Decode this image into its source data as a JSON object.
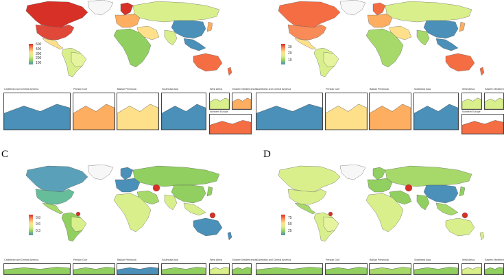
{
  "panels": [
    {
      "letter": "",
      "scale_colors": [
        "#d73027",
        "#fc8d59",
        "#fee08b",
        "#d9ef8b",
        "#91cf60",
        "#4a90b8"
      ],
      "legend_ticks": [
        "600",
        "400",
        "300",
        "200",
        "100"
      ],
      "insets": [
        "Caribbean and Central America",
        "Persian Gulf",
        "Balkan Peninsula",
        "Southeast Asia",
        "West Africa",
        "Eastern Mediterranean",
        "Northern Europe"
      ]
    },
    {
      "letter": "",
      "scale_colors": [
        "#d73027",
        "#fc8d59",
        "#fee08b",
        "#d9ef8b",
        "#91cf60",
        "#4a90b8"
      ],
      "legend_ticks": [
        "30",
        "20",
        "10"
      ],
      "insets": [
        "Caribbean and Central America",
        "Persian Gulf",
        "Balkan Peninsula",
        "Southeast Asia",
        "West Africa",
        "Eastern Mediterranean",
        "Northern Europe"
      ]
    },
    {
      "letter": "C",
      "scale_colors": [
        "#d73027",
        "#fc8d59",
        "#fee08b",
        "#d9ef8b",
        "#91cf60",
        "#4a90b8"
      ],
      "legend_ticks": [
        "0.8",
        "0.6",
        "0.3"
      ],
      "insets": [
        "Caribbean and Central America",
        "Persian Gulf",
        "Balkan Peninsula",
        "Southeast Asia",
        "West Africa",
        "Eastern Mediterranean"
      ]
    },
    {
      "letter": "D",
      "scale_colors": [
        "#d73027",
        "#fc8d59",
        "#fee08b",
        "#d9ef8b",
        "#91cf60",
        "#4a90b8"
      ],
      "legend_ticks": [
        "75",
        "50",
        "25"
      ],
      "insets": [
        "Caribbean and Central America",
        "Persian Gulf",
        "Balkan Peninsula",
        "Southeast Asia",
        "West Africa",
        "Eastern Mediterranean"
      ]
    }
  ],
  "region_colors": {
    "A": {
      "canada": "#d73027",
      "usa": "#e0483a",
      "mexico": "#fee08b",
      "south_america": "#d9ef8b",
      "brazil": "#e6f59d",
      "greenland": "#f7f7f7",
      "europe": "#fdae61",
      "russia": "#d9ef8b",
      "africa": "#91cf60",
      "middle_east": "#fee08b",
      "china": "#4a90b8",
      "india": "#d9ef8b",
      "se_asia": "#4a90b8",
      "australia": "#f46d43",
      "japan": "#fdae61",
      "scandinavia": "#d73027",
      "nz": "#f46d43"
    },
    "B": {
      "canada": "#f46d43",
      "usa": "#f88b57",
      "mexico": "#fee08b",
      "south_america": "#d9ef8b",
      "brazil": "#e6f59d",
      "greenland": "#f7f7f7",
      "europe": "#fdae61",
      "russia": "#d9ef8b",
      "africa": "#a6d96a",
      "middle_east": "#fee08b",
      "china": "#4a90b8",
      "india": "#a6d96a",
      "se_asia": "#4a90b8",
      "australia": "#f46d43",
      "japan": "#fdae61",
      "scandinavia": "#f46d43",
      "nz": "#f46d43"
    },
    "C": {
      "canada": "#5aa0b8",
      "usa": "#66bd9a",
      "mexico": "#a6d96a",
      "south_america": "#91cf60",
      "brazil": "#d9ef8b",
      "greenland": "#f7f7f7",
      "europe": "#4a90b8",
      "russia": "#91cf60",
      "africa": "#d9ef8b",
      "middle_east": "#a6d96a",
      "china": "#91cf60",
      "india": "#d9ef8b",
      "se_asia": "#d9ef8b",
      "australia": "#4a90b8",
      "japan": "#91cf60",
      "scandinavia": "#4a90b8",
      "nz": "#4a90b8"
    },
    "D": {
      "canada": "#d9ef8b",
      "usa": "#d9ef8b",
      "mexico": "#a6d96a",
      "south_america": "#d9ef8b",
      "brazil": "#e6f59d",
      "greenland": "#f7f7f7",
      "europe": "#91cf60",
      "russia": "#a6d96a",
      "africa": "#d9ef8b",
      "middle_east": "#91cf60",
      "china": "#4a90b8",
      "india": "#91cf60",
      "se_asia": "#a6d96a",
      "australia": "#d9ef8b",
      "japan": "#91cf60",
      "scandinavia": "#91cf60",
      "nz": "#d9ef8b"
    }
  },
  "inset_colors": {
    "A": [
      "#4a90b8",
      "#fdae61",
      "#fee08b",
      "#4a90b8",
      "#d9ef8b",
      "#fdae61",
      "#f46d43"
    ],
    "B": [
      "#4a90b8",
      "#fee08b",
      "#fdae61",
      "#4a90b8",
      "#d9ef8b",
      "#d9ef8b",
      "#f46d43"
    ],
    "C": [
      "#91cf60",
      "#91cf60",
      "#4a90b8",
      "#91cf60",
      "#d9ef8b",
      "#91cf60"
    ],
    "D": [
      "#91cf60",
      "#91cf60",
      "#a6d96a",
      "#91cf60",
      "#d9ef8b",
      "#91cf60"
    ]
  },
  "highlights": {
    "C": [
      {
        "name": "guyana-marker",
        "color": "#d73027"
      },
      {
        "name": "kazakhstan-marker",
        "color": "#d73027"
      },
      {
        "name": "png-marker",
        "color": "#d73027"
      }
    ],
    "D": [
      {
        "name": "guyana-marker",
        "color": "#d73027"
      },
      {
        "name": "kazakhstan-marker",
        "color": "#d73027"
      },
      {
        "name": "png-marker",
        "color": "#d73027"
      }
    ]
  }
}
